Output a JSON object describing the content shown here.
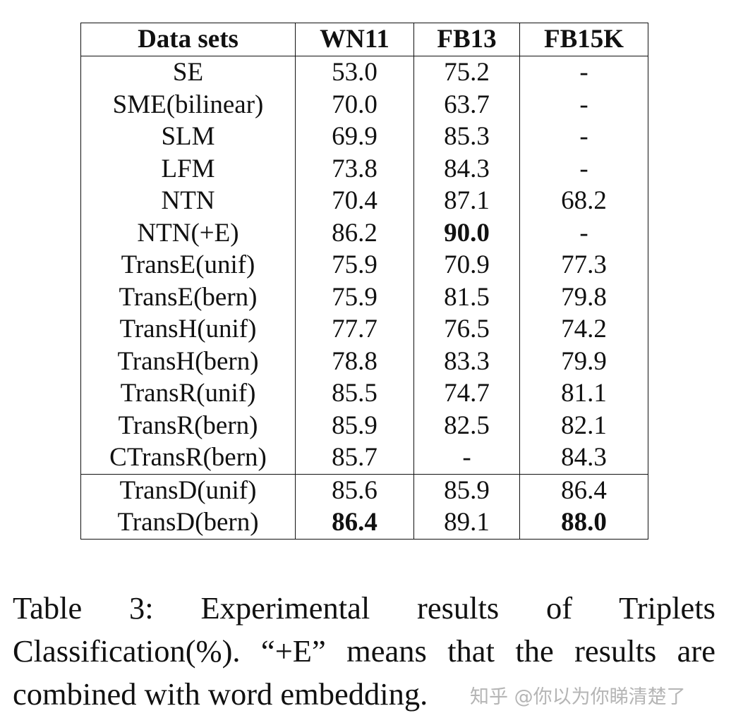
{
  "table": {
    "headers": [
      "Data sets",
      "WN11",
      "FB13",
      "FB15K"
    ],
    "rows": [
      {
        "cells": [
          "SE",
          "53.0",
          "75.2",
          "-"
        ],
        "bold": []
      },
      {
        "cells": [
          "SME(bilinear)",
          "70.0",
          "63.7",
          "-"
        ],
        "bold": []
      },
      {
        "cells": [
          "SLM",
          "69.9",
          "85.3",
          "-"
        ],
        "bold": []
      },
      {
        "cells": [
          "LFM",
          "73.8",
          "84.3",
          "-"
        ],
        "bold": []
      },
      {
        "cells": [
          "NTN",
          "70.4",
          "87.1",
          "68.2"
        ],
        "bold": []
      },
      {
        "cells": [
          "NTN(+E)",
          "86.2",
          "90.0",
          "-"
        ],
        "bold": [
          2
        ]
      },
      {
        "cells": [
          "TransE(unif)",
          "75.9",
          "70.9",
          "77.3"
        ],
        "bold": []
      },
      {
        "cells": [
          "TransE(bern)",
          "75.9",
          "81.5",
          "79.8"
        ],
        "bold": []
      },
      {
        "cells": [
          "TransH(unif)",
          "77.7",
          "76.5",
          "74.2"
        ],
        "bold": []
      },
      {
        "cells": [
          "TransH(bern)",
          "78.8",
          "83.3",
          "79.9"
        ],
        "bold": []
      },
      {
        "cells": [
          "TransR(unif)",
          "85.5",
          "74.7",
          "81.1"
        ],
        "bold": []
      },
      {
        "cells": [
          "TransR(bern)",
          "85.9",
          "82.5",
          "82.1"
        ],
        "bold": []
      },
      {
        "cells": [
          "CTransR(bern)",
          "85.7",
          "-",
          "84.3"
        ],
        "bold": []
      },
      {
        "cells": [
          "TransD(unif)",
          "85.6",
          "85.9",
          "86.4"
        ],
        "bold": [],
        "separator_above": true
      },
      {
        "cells": [
          "TransD(bern)",
          "86.4",
          "89.1",
          "88.0"
        ],
        "bold": [
          1,
          3
        ]
      }
    ]
  },
  "caption": "Table 3: Experimental results of Triplets Classification(%). “+E” means that the results are combined with word embedding.",
  "watermark": "知乎 @你以为你睇清楚了"
}
